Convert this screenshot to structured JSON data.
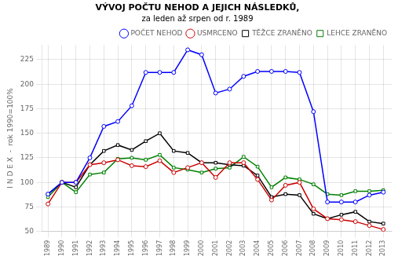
{
  "chart_data": {
    "type": "line",
    "title": "VÝVOJ POČTU NEHOD A JEJICH NÁSLEDKŮ,",
    "subtitle": "za leden až srpen od r. 1989",
    "ylabel": "I N D E X  -  rok 1990=100%",
    "x": [
      1989,
      1990,
      1991,
      1992,
      1993,
      1994,
      1995,
      1996,
      1997,
      1998,
      1999,
      2000,
      2001,
      2002,
      2003,
      2004,
      2005,
      2006,
      2007,
      2008,
      2009,
      2010,
      2011,
      2012,
      2013
    ],
    "series": [
      {
        "name": "POČET NEHOD",
        "color": "#0000ff",
        "marker": "circle",
        "values": [
          88,
          100,
          100,
          125,
          157,
          162,
          178,
          212,
          212,
          212,
          235,
          230,
          191,
          195,
          208,
          213,
          213,
          213,
          212,
          172,
          80,
          80,
          80,
          87,
          90
        ]
      },
      {
        "name": "USMRCENO",
        "color": "#cc0000",
        "marker": "circle",
        "values": [
          78,
          100,
          100,
          118,
          120,
          123,
          117,
          116,
          122,
          110,
          115,
          120,
          105,
          120,
          120,
          103,
          82,
          97,
          100,
          73,
          63,
          62,
          60,
          56,
          52
        ]
      },
      {
        "name": "TĚŽCE ZRANĚNO",
        "color": "#000000",
        "marker": "square",
        "values": [
          88,
          100,
          95,
          118,
          132,
          138,
          133,
          142,
          150,
          132,
          130,
          120,
          120,
          118,
          117,
          107,
          85,
          88,
          87,
          68,
          63,
          67,
          70,
          60,
          58
        ]
      },
      {
        "name": "LEHCE ZRANĚNO",
        "color": "#008000",
        "marker": "square",
        "values": [
          85,
          100,
          90,
          108,
          110,
          124,
          125,
          123,
          128,
          115,
          113,
          110,
          114,
          115,
          126,
          116,
          95,
          105,
          103,
          98,
          88,
          87,
          91,
          91,
          92
        ]
      }
    ],
    "xlim": [
      1988.6,
      2013.6
    ],
    "xticks": [
      1989,
      1990,
      1991,
      1992,
      1993,
      1994,
      1995,
      1996,
      1997,
      1998,
      1999,
      2000,
      2001,
      2002,
      2003,
      2004,
      2005,
      2006,
      2007,
      2008,
      2009,
      2010,
      2011,
      2012,
      2013
    ],
    "ylim": [
      50,
      240
    ],
    "yticks": [
      50,
      75,
      100,
      125,
      150,
      175,
      200,
      225
    ],
    "grid": true,
    "legend": "upper right"
  }
}
